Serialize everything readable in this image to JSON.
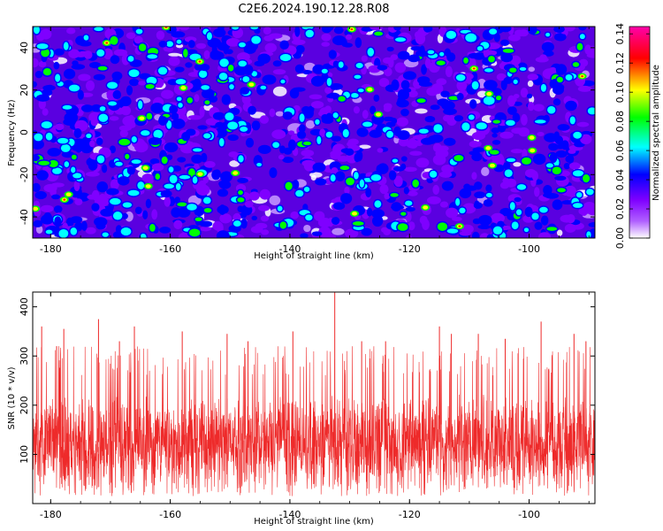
{
  "title": "C2E6.2024.190.12.28.R08",
  "chart_data": [
    {
      "type": "heatmap",
      "xlabel": "Height of straight line (km)",
      "ylabel": "Frequency (Hz)",
      "xlim": [
        -183,
        -89
      ],
      "ylim": [
        -50,
        50
      ],
      "x_ticks": [
        -180,
        -160,
        -140,
        -120,
        -100
      ],
      "y_ticks": [
        -40,
        -20,
        0,
        20,
        40
      ],
      "colorbar": {
        "label": "Normalized spectral amplitude",
        "range": [
          0,
          0.145
        ],
        "ticks": [
          "0.00",
          "0.02",
          "0.04",
          "0.06",
          "0.08",
          "0.10",
          "0.12",
          "0.14"
        ],
        "colors": [
          "#ffffff",
          "#7f00ff",
          "#0000ff",
          "#00ffff",
          "#00ff00",
          "#ffff00",
          "#ff0000",
          "#ff00aa"
        ]
      },
      "description_values": {
        "typical_amplitude": 0.03,
        "peak_amplitude": 0.14
      }
    },
    {
      "type": "line",
      "xlabel": "Height of straight line (km)",
      "ylabel": "SNR (10 * v/v)",
      "xlim": [
        -183,
        -89
      ],
      "ylim": [
        0,
        430
      ],
      "x_ticks": [
        -180,
        -160,
        -140,
        -120,
        -100
      ],
      "y_ticks": [
        100,
        200,
        300,
        400
      ],
      "series": [
        {
          "color": "#ee2a2a",
          "baseline": 125,
          "typical_low": 40,
          "typical_high": 260,
          "peaks": [
            {
              "x": -181.5,
              "y": 360
            },
            {
              "x": -179.0,
              "y": 320
            },
            {
              "x": -177.8,
              "y": 355
            },
            {
              "x": -172.0,
              "y": 375
            },
            {
              "x": -168.5,
              "y": 330
            },
            {
              "x": -166.0,
              "y": 360
            },
            {
              "x": -158.0,
              "y": 350
            },
            {
              "x": -150.5,
              "y": 345
            },
            {
              "x": -147.0,
              "y": 330
            },
            {
              "x": -139.5,
              "y": 350
            },
            {
              "x": -132.5,
              "y": 430
            },
            {
              "x": -128.0,
              "y": 330
            },
            {
              "x": -124.0,
              "y": 330
            },
            {
              "x": -115.0,
              "y": 360
            },
            {
              "x": -113.0,
              "y": 345
            },
            {
              "x": -108.5,
              "y": 345
            },
            {
              "x": -104.0,
              "y": 335
            },
            {
              "x": -98.0,
              "y": 370
            },
            {
              "x": -92.5,
              "y": 345
            },
            {
              "x": -90.5,
              "y": 330
            }
          ]
        }
      ]
    }
  ]
}
